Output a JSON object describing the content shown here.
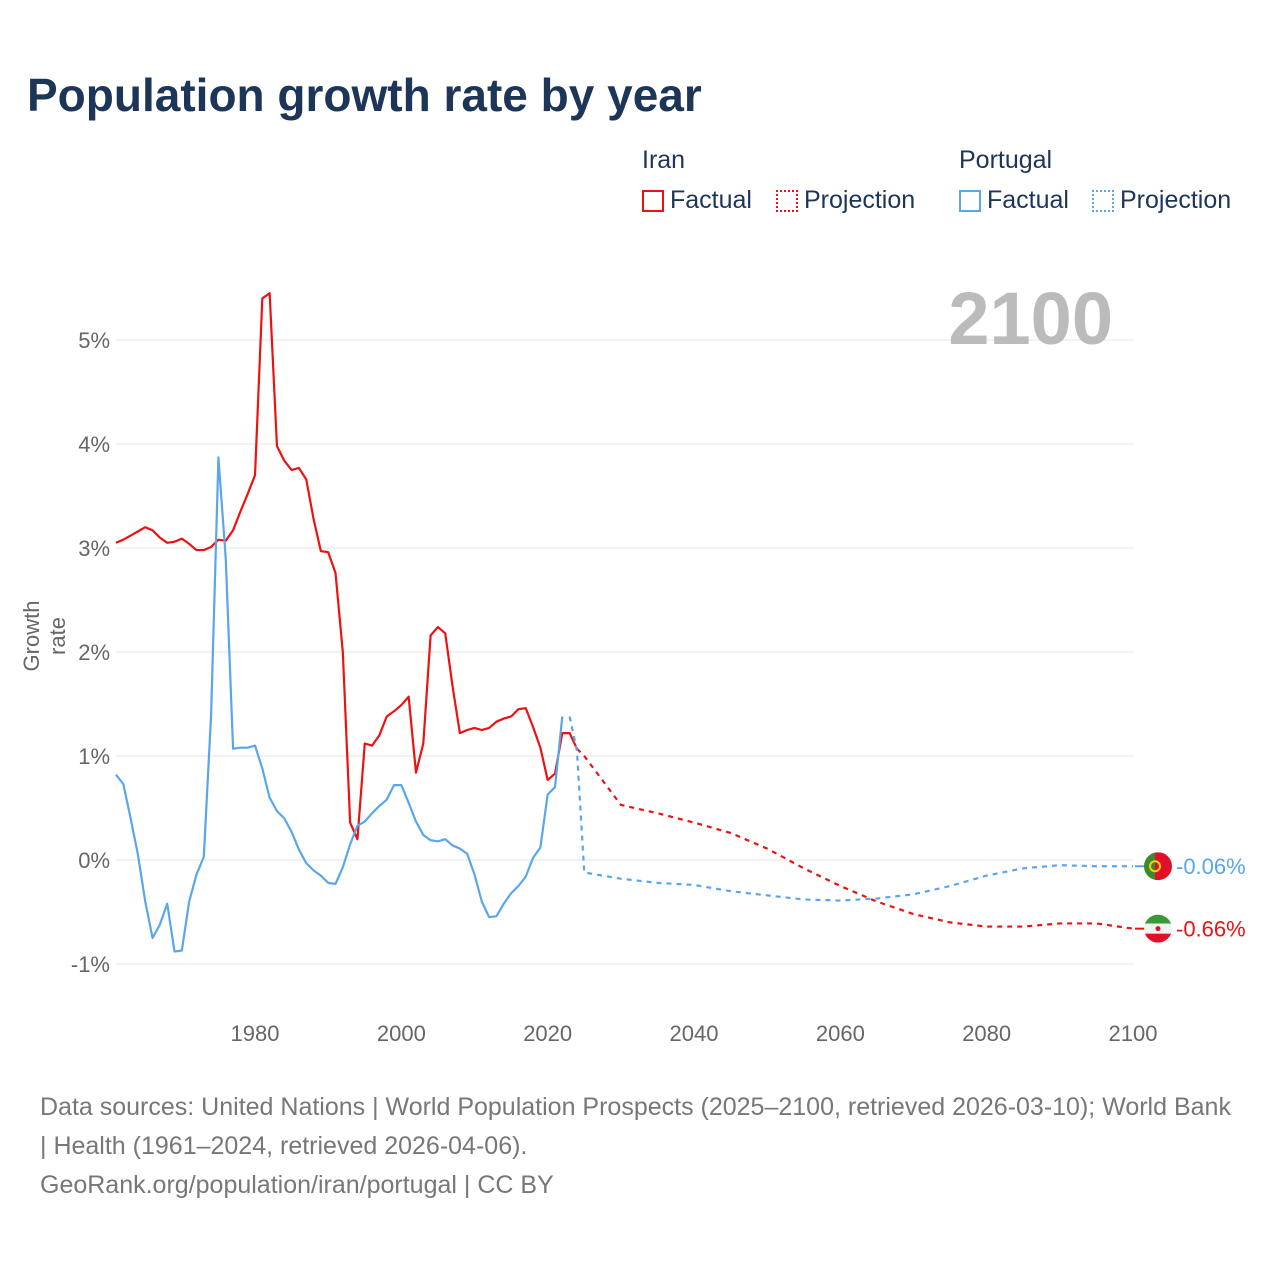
{
  "title": "Population growth rate by year",
  "legend": {
    "groups": [
      {
        "name": "Iran",
        "color": "#ee1111",
        "factual": "Factual",
        "projection": "Projection"
      },
      {
        "name": "Portugal",
        "color": "#5aa6ea",
        "factual": "Factual",
        "projection": "Projection"
      }
    ]
  },
  "current_year": "2100",
  "end_labels": {
    "portugal": "-0.06%",
    "iran": "-0.66%"
  },
  "footer": {
    "sources": "Data sources: United Nations | World Population Prospects (2025–2100, retrieved 2026-03-10); World Bank | Health (1961–2024, retrieved 2026-04-06).",
    "link": "GeoRank.org/population/iran/portugal | CC BY"
  },
  "chart_data": {
    "type": "line",
    "title": "Population growth rate by year",
    "xlabel": "",
    "ylabel": "Growth rate",
    "xlim": [
      1961,
      2100
    ],
    "ylim": [
      -1.4,
      5.8
    ],
    "xticks": [
      1980,
      2000,
      2020,
      2040,
      2060,
      2080,
      2100
    ],
    "yticks": [
      -1,
      0,
      1,
      2,
      3,
      4,
      5
    ],
    "ytick_labels": [
      "-1%",
      "0%",
      "1%",
      "2%",
      "3%",
      "4%",
      "5%"
    ],
    "grid": true,
    "series": [
      {
        "name": "Iran",
        "color": "#ee1111",
        "factual": {
          "start": 1961,
          "values": [
            3.05,
            3.08,
            3.12,
            3.16,
            3.2,
            3.17,
            3.1,
            3.05,
            3.06,
            3.09,
            3.04,
            2.98,
            2.98,
            3.01,
            3.08,
            3.07,
            3.17,
            3.35,
            3.52,
            3.7,
            5.4,
            5.45,
            3.98,
            3.84,
            3.75,
            3.77,
            3.66,
            3.28,
            2.97,
            2.96,
            2.76,
            2.0,
            0.36,
            0.2,
            1.12,
            1.1,
            1.2,
            1.38,
            1.43,
            1.49,
            1.57,
            0.84,
            1.12,
            2.16,
            2.24,
            2.18,
            1.67,
            1.22,
            1.25,
            1.27,
            1.25,
            1.27,
            1.33,
            1.36,
            1.38,
            1.45,
            1.46,
            1.28,
            1.08,
            0.77,
            0.83,
            1.22,
            1.22,
            1.07
          ]
        },
        "projection": {
          "x": [
            2024,
            2025,
            2030,
            2035,
            2040,
            2045,
            2050,
            2055,
            2060,
            2065,
            2070,
            2075,
            2080,
            2085,
            2090,
            2095,
            2100
          ],
          "values": [
            1.07,
            1.0,
            0.53,
            0.45,
            0.36,
            0.26,
            0.11,
            -0.08,
            -0.25,
            -0.4,
            -0.52,
            -0.6,
            -0.64,
            -0.64,
            -0.61,
            -0.61,
            -0.66
          ]
        }
      },
      {
        "name": "Portugal",
        "color": "#5aa6ea",
        "factual": {
          "start": 1961,
          "values": [
            0.82,
            0.73,
            0.4,
            0.05,
            -0.4,
            -0.75,
            -0.62,
            -0.42,
            -0.88,
            -0.87,
            -0.4,
            -0.14,
            0.03,
            1.4,
            3.87,
            2.9,
            1.07,
            1.08,
            1.08,
            1.1,
            0.88,
            0.6,
            0.47,
            0.4,
            0.27,
            0.1,
            -0.03,
            -0.1,
            -0.15,
            -0.22,
            -0.23,
            -0.07,
            0.15,
            0.33,
            0.37,
            0.45,
            0.52,
            0.58,
            0.72,
            0.72,
            0.55,
            0.37,
            0.24,
            0.19,
            0.18,
            0.2,
            0.14,
            0.11,
            0.06,
            -0.14,
            -0.4,
            -0.55,
            -0.54,
            -0.42,
            -0.32,
            -0.25,
            -0.16,
            0.02,
            0.12,
            0.63,
            0.7,
            1.38
          ]
        },
        "projection": {
          "x": [
            2023,
            2024,
            2025,
            2030,
            2035,
            2040,
            2045,
            2050,
            2055,
            2060,
            2065,
            2070,
            2075,
            2080,
            2085,
            2090,
            2095,
            2100
          ],
          "values": [
            1.38,
            1.05,
            -0.12,
            -0.18,
            -0.22,
            -0.24,
            -0.3,
            -0.34,
            -0.38,
            -0.39,
            -0.37,
            -0.33,
            -0.25,
            -0.15,
            -0.08,
            -0.05,
            -0.06,
            -0.06
          ]
        }
      }
    ]
  }
}
